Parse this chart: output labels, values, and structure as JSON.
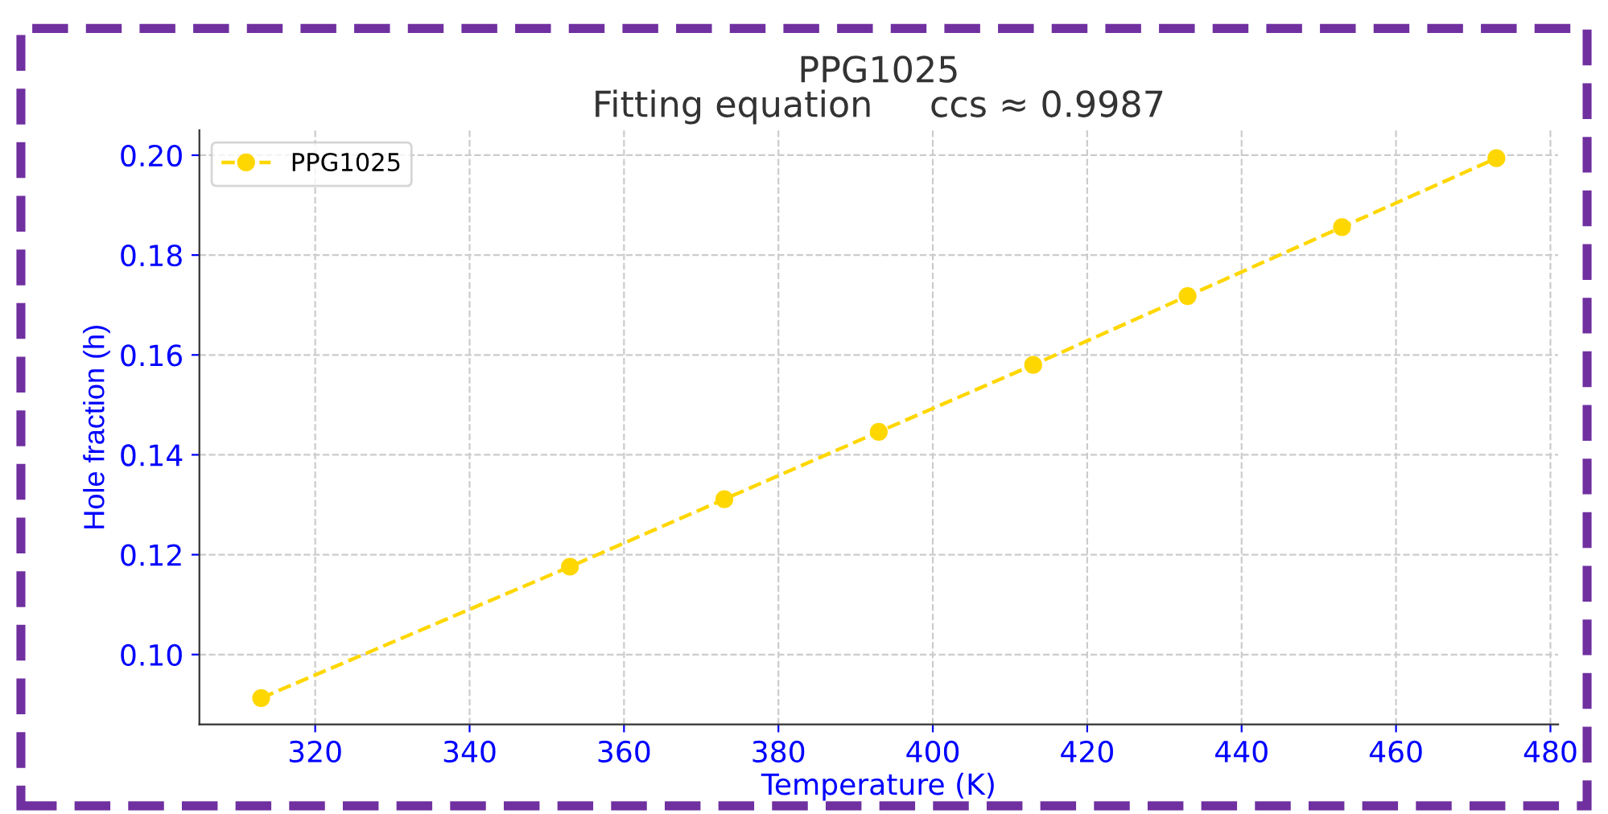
{
  "chart_data": {
    "type": "line",
    "title": "PPG1025\nFitting equation     ccs ≈ 0.9987",
    "xlabel": "Temperature (K)",
    "ylabel": "Hole fraction (h)",
    "x": [
      313,
      353,
      373,
      393,
      413,
      433,
      453,
      473
    ],
    "series": [
      {
        "name": "PPG1025",
        "color": "#ffd700",
        "values": [
          0.0913,
          0.1176,
          0.1311,
          0.1446,
          0.158,
          0.1718,
          0.1856,
          0.1994
        ]
      }
    ],
    "xlim": [
      305,
      481
    ],
    "xticks": [
      320,
      340,
      360,
      380,
      400,
      420,
      440,
      460,
      480
    ],
    "ylim": [
      0.086,
      0.205
    ],
    "yticks": [
      {
        "value": 0.1,
        "label": "0.10"
      },
      {
        "value": 0.12,
        "label": "0.12"
      },
      {
        "value": 0.14,
        "label": "0.14"
      },
      {
        "value": 0.16,
        "label": "0.16"
      },
      {
        "value": 0.18,
        "label": "0.18"
      },
      {
        "value": 0.2,
        "label": "0.20"
      }
    ],
    "grid": true,
    "legend": "top left",
    "marker": "circle",
    "line_style": "dashed"
  }
}
